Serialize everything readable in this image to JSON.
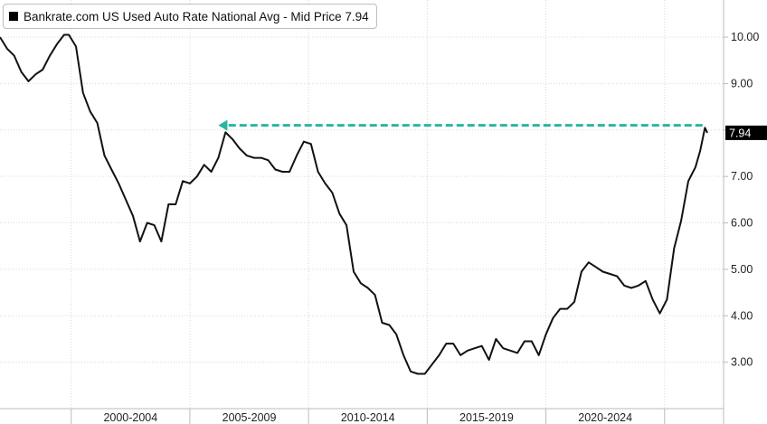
{
  "colors": {
    "line": "#111111",
    "arrow": "#2ab5a0",
    "grid": "#d9d9d9",
    "axis": "#bbbbbb",
    "last_badge": "#000000"
  },
  "chart_data": {
    "type": "line",
    "title": "",
    "xlabel": "",
    "ylabel": "",
    "legend_placement": "top-left",
    "grid": true,
    "ylim": [
      2.0,
      10.8
    ],
    "xlim": [
      1996.0,
      2025.8
    ],
    "y_ticks": [
      3,
      4,
      5,
      6,
      7,
      8,
      9,
      10
    ],
    "y_tick_labels": [
      "3.00",
      "4.00",
      "5.00",
      "6.00",
      "7.00",
      "8.00",
      "9.00",
      "10.00"
    ],
    "x_bands": [
      {
        "label": "2000-2004",
        "start": 1999.0,
        "end": 2004.0
      },
      {
        "label": "2005-2009",
        "start": 2004.0,
        "end": 2009.0
      },
      {
        "label": "2010-2014",
        "start": 2009.0,
        "end": 2014.0
      },
      {
        "label": "2015-2019",
        "start": 2014.0,
        "end": 2019.0
      },
      {
        "label": "2020-2024",
        "start": 2019.0,
        "end": 2024.0
      }
    ],
    "series": [
      {
        "name": "Bankrate.com US Used Auto Rate National Avg - Mid Price 7.94",
        "last_value_label": "7.94",
        "points": [
          [
            1996.0,
            10.0
          ],
          [
            1996.3,
            9.75
          ],
          [
            1996.6,
            9.6
          ],
          [
            1996.9,
            9.25
          ],
          [
            1997.2,
            9.05
          ],
          [
            1997.5,
            9.2
          ],
          [
            1997.8,
            9.3
          ],
          [
            1998.1,
            9.6
          ],
          [
            1998.4,
            9.85
          ],
          [
            1998.7,
            10.05
          ],
          [
            1998.9,
            10.05
          ],
          [
            1999.2,
            9.8
          ],
          [
            1999.5,
            8.8
          ],
          [
            1999.8,
            8.4
          ],
          [
            2000.1,
            8.15
          ],
          [
            2000.4,
            7.45
          ],
          [
            2000.7,
            7.15
          ],
          [
            2001.0,
            6.85
          ],
          [
            2001.3,
            6.5
          ],
          [
            2001.6,
            6.15
          ],
          [
            2001.9,
            5.6
          ],
          [
            2002.2,
            6.0
          ],
          [
            2002.5,
            5.95
          ],
          [
            2002.8,
            5.6
          ],
          [
            2003.1,
            6.4
          ],
          [
            2003.4,
            6.4
          ],
          [
            2003.7,
            6.9
          ],
          [
            2004.0,
            6.85
          ],
          [
            2004.3,
            7.0
          ],
          [
            2004.6,
            7.25
          ],
          [
            2004.9,
            7.1
          ],
          [
            2005.2,
            7.4
          ],
          [
            2005.5,
            7.95
          ],
          [
            2005.8,
            7.8
          ],
          [
            2006.1,
            7.6
          ],
          [
            2006.4,
            7.45
          ],
          [
            2006.7,
            7.4
          ],
          [
            2007.0,
            7.4
          ],
          [
            2007.3,
            7.35
          ],
          [
            2007.6,
            7.15
          ],
          [
            2007.9,
            7.1
          ],
          [
            2008.2,
            7.1
          ],
          [
            2008.5,
            7.45
          ],
          [
            2008.8,
            7.75
          ],
          [
            2009.1,
            7.7
          ],
          [
            2009.4,
            7.1
          ],
          [
            2009.7,
            6.85
          ],
          [
            2010.0,
            6.65
          ],
          [
            2010.3,
            6.2
          ],
          [
            2010.6,
            5.95
          ],
          [
            2010.9,
            4.95
          ],
          [
            2011.2,
            4.7
          ],
          [
            2011.5,
            4.6
          ],
          [
            2011.8,
            4.45
          ],
          [
            2012.1,
            3.85
          ],
          [
            2012.4,
            3.8
          ],
          [
            2012.7,
            3.6
          ],
          [
            2013.0,
            3.15
          ],
          [
            2013.3,
            2.8
          ],
          [
            2013.6,
            2.75
          ],
          [
            2013.9,
            2.75
          ],
          [
            2014.2,
            2.95
          ],
          [
            2014.5,
            3.15
          ],
          [
            2014.8,
            3.4
          ],
          [
            2015.1,
            3.4
          ],
          [
            2015.4,
            3.15
          ],
          [
            2015.7,
            3.25
          ],
          [
            2016.0,
            3.3
          ],
          [
            2016.3,
            3.35
          ],
          [
            2016.6,
            3.05
          ],
          [
            2016.9,
            3.5
          ],
          [
            2017.2,
            3.3
          ],
          [
            2017.5,
            3.25
          ],
          [
            2017.8,
            3.2
          ],
          [
            2018.1,
            3.45
          ],
          [
            2018.4,
            3.45
          ],
          [
            2018.7,
            3.15
          ],
          [
            2019.0,
            3.6
          ],
          [
            2019.3,
            3.95
          ],
          [
            2019.6,
            4.15
          ],
          [
            2019.9,
            4.15
          ],
          [
            2020.2,
            4.3
          ],
          [
            2020.5,
            4.95
          ],
          [
            2020.8,
            5.15
          ],
          [
            2021.1,
            5.05
          ],
          [
            2021.4,
            4.95
          ],
          [
            2021.7,
            4.9
          ],
          [
            2022.0,
            4.85
          ],
          [
            2022.3,
            4.65
          ],
          [
            2022.6,
            4.6
          ],
          [
            2022.9,
            4.65
          ],
          [
            2023.2,
            4.75
          ],
          [
            2023.5,
            4.35
          ],
          [
            2023.8,
            4.05
          ],
          [
            2024.1,
            4.35
          ],
          [
            2024.4,
            5.45
          ],
          [
            2024.7,
            6.05
          ],
          [
            2025.0,
            6.9
          ],
          [
            2025.3,
            7.2
          ],
          [
            2025.5,
            7.55
          ],
          [
            2025.7,
            8.05
          ],
          [
            2025.8,
            7.94
          ]
        ]
      }
    ],
    "annotations": [
      {
        "type": "dashed-arrow",
        "direction": "left",
        "y": 8.1,
        "x_start": 2025.6,
        "x_end": 2005.2
      }
    ]
  }
}
